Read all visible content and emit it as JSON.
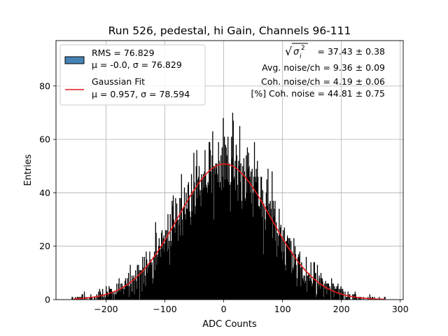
{
  "chart_data": {
    "type": "histogram",
    "title": "Run 526, pedestal, hi Gain, Channels 96-111",
    "xlabel": "ADC Counts",
    "ylabel": "Entries",
    "xlim": [
      -285,
      305
    ],
    "ylim": [
      0,
      97
    ],
    "xticks": [
      -200,
      -100,
      0,
      100,
      200,
      300
    ],
    "xtick_labels": [
      "−200",
      "−100",
      "0",
      "100",
      "200",
      "300"
    ],
    "yticks": [
      0,
      20,
      40,
      60,
      80
    ],
    "yticks_labels": [
      "0",
      "20",
      "40",
      "60",
      "80"
    ],
    "grid": true,
    "legend_position": "top-left",
    "histogram": {
      "name_line1": "RMS = 76.829",
      "name_line2": "μ = -0.0, σ = 76.829",
      "face_color": "#4682b4",
      "bar_color": "#000000",
      "bin_width": 1,
      "x_range": [
        -262,
        278
      ],
      "rms": 76.829,
      "mu": 0.0,
      "sigma": 76.829
    },
    "fit": {
      "name_line1": "Gaussian Fit",
      "name_line2": "μ = 0.957, σ = 78.594",
      "color": "#e41a1c",
      "mu": 0.957,
      "sigma": 78.594,
      "amplitude": 50.8
    },
    "annotations": [
      {
        "prefix": "√",
        "symbol": "σ",
        "sub": "i",
        "sup": "2",
        "suffix": " = 37.43 ± 0.38"
      },
      {
        "text": "Avg. noise/ch = 9.36 ± 0.09"
      },
      {
        "text": "Coh. noise/ch = 4.19 ± 0.06"
      },
      {
        "text": "[%] Coh. noise = 44.81 ± 0.75"
      }
    ]
  }
}
